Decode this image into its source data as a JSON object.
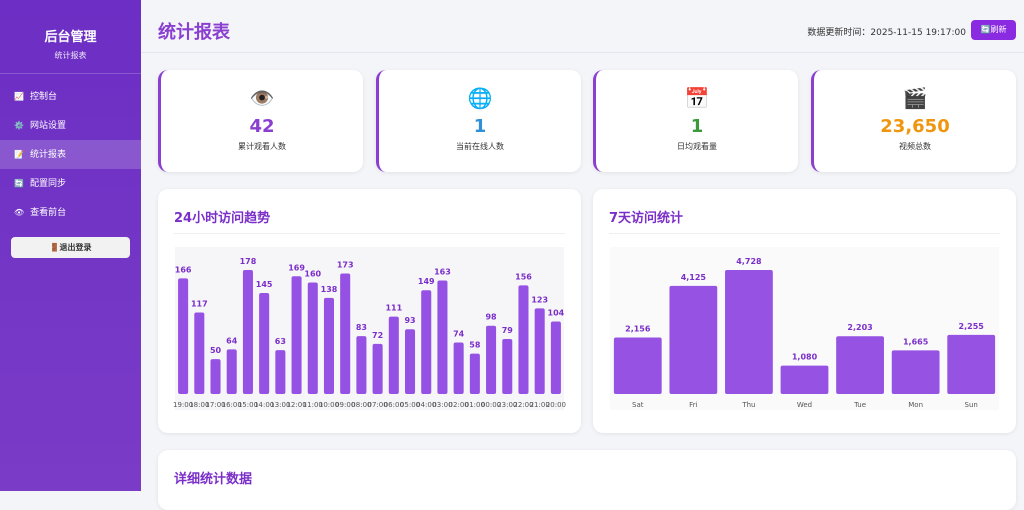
{
  "sidebar": {
    "title": "后台管理",
    "subtitle": "统计报表",
    "menu": [
      "控制台",
      "网站设置",
      "统计报表",
      "配置同步",
      "查看前台"
    ],
    "logout": "退出登录"
  },
  "header": {
    "title": "统计报表",
    "update_time": "数据更新时间：2025-11-15 19:17:00",
    "refresh": "刷新"
  },
  "stats": [
    {
      "value": "42",
      "label": "累计观看人数"
    },
    {
      "value": "1",
      "label": "当前在线人数"
    },
    {
      "value": "1",
      "label": "日均观看量"
    },
    {
      "value": "23,650",
      "label": "视频总数"
    }
  ],
  "chart_data": [
    {
      "type": "bar",
      "title": "24小时访问趋势",
      "color": "#8b3fe0",
      "categories": [
        "19:00",
        "18:00",
        "17:00",
        "16:00",
        "15:00",
        "14:00",
        "13:00",
        "12:00",
        "11:00",
        "10:00",
        "09:00",
        "08:00",
        "07:00",
        "06:00",
        "05:00",
        "04:00",
        "03:00",
        "02:00",
        "01:00",
        "00:00",
        "23:00",
        "22:00",
        "21:00",
        "20:00"
      ],
      "values": [
        166,
        117,
        50,
        64,
        178,
        145,
        63,
        169,
        160,
        138,
        173,
        83,
        72,
        111,
        93,
        149,
        163,
        74,
        58,
        98,
        79,
        156,
        123,
        104
      ]
    },
    {
      "type": "bar",
      "title": "7天访问统计",
      "color": "#8b3fe0",
      "categories": [
        "Sat",
        "Fri",
        "Thu",
        "Wed",
        "Tue",
        "Mon",
        "Sun"
      ],
      "values": [
        2156,
        4125,
        4728,
        1080,
        2203,
        1665,
        2255
      ],
      "value_labels": [
        "2,156",
        "4,125",
        "4,728",
        "1,080",
        "2,203",
        "1,665",
        "2,255"
      ]
    }
  ],
  "details": {
    "title": "详细统计数据"
  }
}
